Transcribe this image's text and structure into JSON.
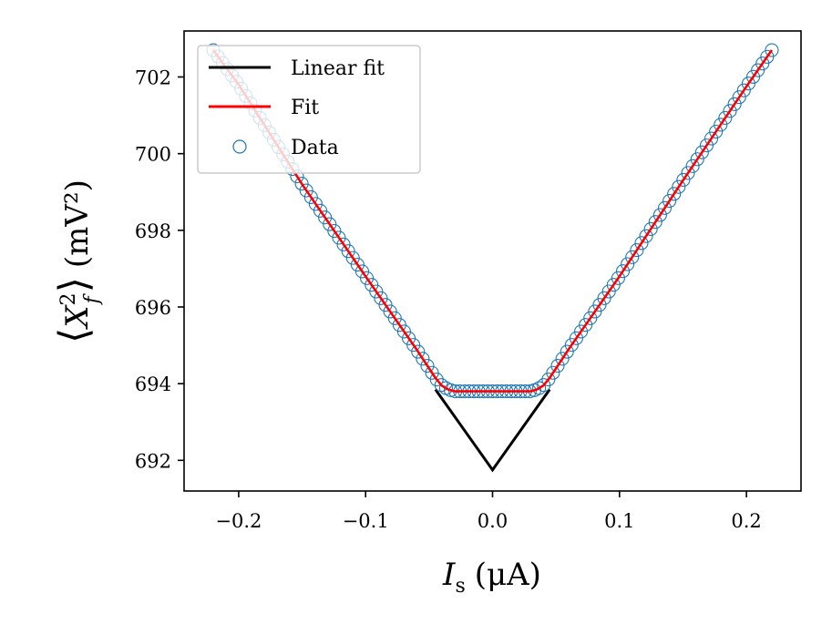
{
  "chart_data": {
    "type": "line",
    "xlabel": {
      "symbol": "I",
      "subscript": "s",
      "unit": "(μA)"
    },
    "ylabel": {
      "prefix": "⟨",
      "symbol": "X",
      "superscript": "2",
      "subscript": "f",
      "suffix": "⟩",
      "unit": "(mV²)"
    },
    "xlim": [
      -0.243,
      0.243
    ],
    "ylim": [
      691.2,
      703.2
    ],
    "xticks": [
      -0.2,
      -0.1,
      0.0,
      0.1,
      0.2
    ],
    "xtick_labels": [
      "−0.2",
      "−0.1",
      "0.0",
      "0.1",
      "0.2"
    ],
    "yticks": [
      692,
      694,
      696,
      698,
      700,
      702
    ],
    "ytick_labels": [
      "692",
      "694",
      "696",
      "698",
      "700",
      "702"
    ],
    "legend_position": "top-left",
    "grid": false,
    "series": [
      {
        "name": "Linear fit",
        "kind": "line",
        "color": "#000000",
        "x": [
          -0.045,
          0.0,
          0.045
        ],
        "y": [
          693.85,
          691.75,
          693.85
        ]
      },
      {
        "name": "Fit",
        "kind": "line",
        "color": "#ff0000",
        "x": [
          -0.22,
          -0.2,
          -0.15,
          -0.1,
          -0.06,
          -0.045,
          -0.04,
          -0.035,
          -0.03,
          0.0,
          0.03,
          0.035,
          0.04,
          0.045,
          0.06,
          0.1,
          0.15,
          0.2,
          0.22
        ],
        "y": [
          702.7,
          701.8,
          699.2,
          696.8,
          694.9,
          694.15,
          693.95,
          693.85,
          693.8,
          693.8,
          693.8,
          693.85,
          693.95,
          694.15,
          694.9,
          696.8,
          699.3,
          701.75,
          702.7
        ]
      },
      {
        "name": "Data",
        "kind": "markers",
        "color": "#1f77b4",
        "x_range": [
          -0.22,
          0.22
        ],
        "count": 121
      }
    ]
  }
}
